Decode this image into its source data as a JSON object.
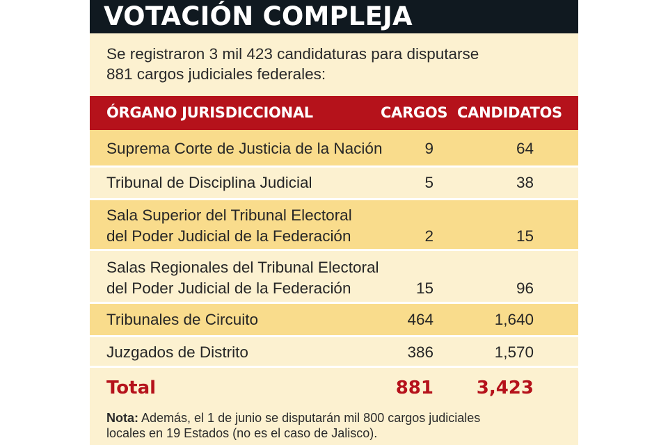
{
  "title": "VOTACIÓN COMPLEJA",
  "intro": {
    "line1": "Se registraron 3 mil 423 candidaturas para disputarse",
    "line2": "881 cargos judiciales federales:"
  },
  "table": {
    "headers": {
      "organo": "ÓRGANO JURISDICCIONAL",
      "cargos": "CARGOS",
      "candidatos": "CANDIDATOS"
    },
    "rows": [
      {
        "organo_l1": "Suprema Corte de Justicia de la Nación",
        "organo_l2": "",
        "cargos": "9",
        "candidatos": "64"
      },
      {
        "organo_l1": "Tribunal de Disciplina Judicial",
        "organo_l2": "",
        "cargos": "5",
        "candidatos": "38"
      },
      {
        "organo_l1": "Sala Superior del Tribunal Electoral",
        "organo_l2": "del Poder Judicial de la Federación",
        "cargos": "2",
        "candidatos": "15"
      },
      {
        "organo_l1": "Salas Regionales del Tribunal Electoral",
        "organo_l2": "del Poder Judicial de la Federación",
        "cargos": "15",
        "candidatos": "96"
      },
      {
        "organo_l1": "Tribunales de Circuito",
        "organo_l2": "",
        "cargos": "464",
        "candidatos": "1,640"
      },
      {
        "organo_l1": "Juzgados de Distrito",
        "organo_l2": "",
        "cargos": "386",
        "candidatos": "1,570"
      }
    ],
    "total": {
      "label": "Total",
      "cargos": "881",
      "candidatos": "3,423"
    }
  },
  "note": {
    "label": "Nota:",
    "line1": " Además, el 1 de junio se disputarán mil 800 cargos judiciales",
    "line2": "locales en 19 Estados (no es el caso de Jalisco)."
  },
  "colors": {
    "header_red": "#b5121b",
    "title_bar": "#101920",
    "row_dark": "#f9dc8c",
    "row_light": "#fcf1d0"
  }
}
